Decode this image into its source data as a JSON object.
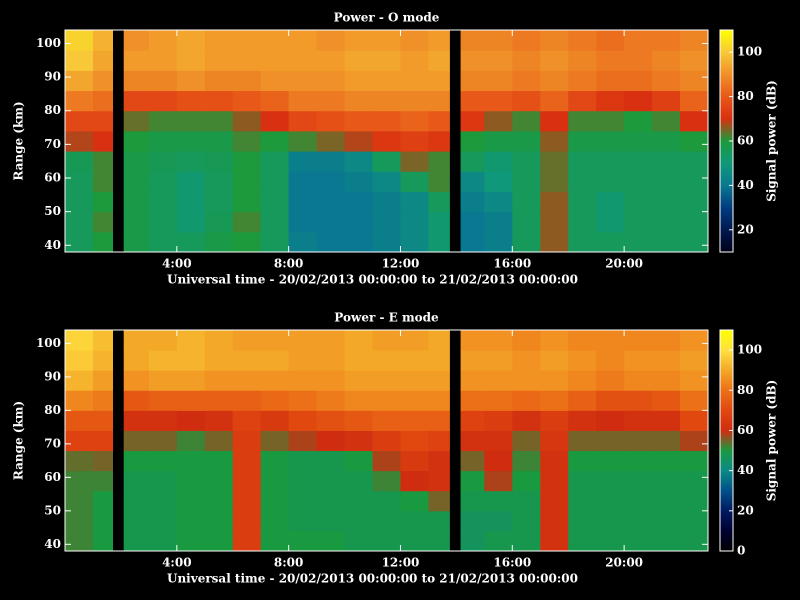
{
  "chart_data": [
    {
      "type": "heatmap",
      "title": "Power - O mode",
      "x_label": "Universal time - 20/02/2013 00:00:00 to 21/02/2013 00:00:00",
      "y_label": "Range (km)",
      "colorbar_label": "Signal power (dB)",
      "xbins": [
        0,
        1,
        1.7,
        2.1,
        3,
        4,
        5,
        6,
        7,
        8,
        9,
        10,
        11,
        12,
        13,
        13.75,
        14.15,
        15,
        16,
        17,
        18,
        19,
        20,
        21,
        22,
        23
      ],
      "ybins": [
        38,
        44,
        50,
        56,
        62,
        68,
        74,
        80,
        86,
        92,
        98,
        104
      ],
      "xlim": [
        0,
        23
      ],
      "ylim": [
        38,
        104
      ],
      "zlim": [
        10,
        110
      ],
      "xticks": [
        {
          "value": 4,
          "label": "4:00"
        },
        {
          "value": 8,
          "label": "8:00"
        },
        {
          "value": 12,
          "label": "12:00"
        },
        {
          "value": 16,
          "label": "16:00"
        },
        {
          "value": 20,
          "label": "20:00"
        }
      ],
      "yticks": [
        40,
        50,
        60,
        70,
        80,
        90,
        100
      ],
      "cticks": [
        20,
        40,
        60,
        80,
        100
      ],
      "colormap": [
        "#000018",
        "#001850",
        "#003c80",
        "#0a7890",
        "#10987a",
        "#1c9a3c",
        "#d83010",
        "#e85818",
        "#f09028",
        "#f8c838",
        "#ffff00"
      ],
      "z": [
        [
          55,
          60,
          null,
          58,
          55,
          55,
          58,
          60,
          55,
          42,
          40,
          40,
          42,
          45,
          52,
          null,
          40,
          42,
          55,
          66,
          55,
          55,
          55,
          55,
          55
        ],
        [
          55,
          62,
          null,
          58,
          55,
          52,
          56,
          62,
          55,
          40,
          40,
          40,
          42,
          45,
          52,
          null,
          40,
          42,
          55,
          66,
          55,
          52,
          55,
          55,
          55
        ],
        [
          55,
          60,
          null,
          58,
          55,
          52,
          55,
          60,
          55,
          40,
          40,
          40,
          42,
          45,
          55,
          null,
          42,
          45,
          55,
          66,
          55,
          52,
          55,
          55,
          55
        ],
        [
          55,
          62,
          null,
          58,
          55,
          52,
          55,
          60,
          55,
          40,
          40,
          42,
          45,
          55,
          62,
          null,
          45,
          50,
          55,
          64,
          55,
          55,
          55,
          55,
          55
        ],
        [
          56,
          62,
          null,
          58,
          56,
          55,
          56,
          60,
          55,
          42,
          42,
          45,
          55,
          65,
          62,
          null,
          55,
          52,
          55,
          64,
          55,
          55,
          55,
          55,
          55
        ],
        [
          68,
          70,
          null,
          60,
          58,
          58,
          58,
          62,
          60,
          62,
          65,
          68,
          72,
          74,
          72,
          null,
          60,
          58,
          58,
          66,
          58,
          58,
          58,
          58,
          60
        ],
        [
          76,
          76,
          null,
          64,
          62,
          62,
          62,
          66,
          70,
          76,
          78,
          80,
          80,
          82,
          80,
          null,
          72,
          66,
          62,
          70,
          62,
          62,
          60,
          62,
          70
        ],
        [
          86,
          84,
          null,
          76,
          76,
          78,
          78,
          80,
          82,
          86,
          86,
          88,
          88,
          88,
          88,
          null,
          80,
          80,
          78,
          82,
          76,
          72,
          70,
          74,
          82
        ],
        [
          94,
          90,
          null,
          88,
          88,
          90,
          88,
          88,
          90,
          90,
          90,
          92,
          92,
          92,
          92,
          null,
          88,
          88,
          86,
          88,
          86,
          84,
          84,
          86,
          88
        ],
        [
          100,
          94,
          null,
          92,
          92,
          94,
          92,
          92,
          92,
          92,
          92,
          94,
          94,
          92,
          94,
          null,
          90,
          90,
          88,
          90,
          88,
          86,
          86,
          88,
          90
        ],
        [
          102,
          96,
          null,
          90,
          92,
          94,
          92,
          92,
          92,
          92,
          90,
          92,
          92,
          90,
          92,
          null,
          88,
          88,
          86,
          88,
          86,
          84,
          86,
          86,
          88
        ]
      ]
    },
    {
      "type": "heatmap",
      "title": "Power - E mode",
      "x_label": "Universal time - 20/02/2013 00:00:00 to 21/02/2013 00:00:00",
      "y_label": "Range (km)",
      "colorbar_label": "Signal power (dB)",
      "xbins": [
        0,
        1,
        1.7,
        2.1,
        3,
        4,
        5,
        6,
        7,
        8,
        9,
        10,
        11,
        12,
        13,
        13.75,
        14.15,
        15,
        16,
        17,
        18,
        19,
        20,
        21,
        22,
        23
      ],
      "ybins": [
        38,
        44,
        50,
        56,
        62,
        68,
        74,
        80,
        86,
        92,
        98,
        104
      ],
      "xlim": [
        0,
        23
      ],
      "ylim": [
        38,
        104
      ],
      "zlim": [
        0,
        110
      ],
      "xticks": [
        {
          "value": 4,
          "label": "4:00"
        },
        {
          "value": 8,
          "label": "8:00"
        },
        {
          "value": 12,
          "label": "12:00"
        },
        {
          "value": 16,
          "label": "16:00"
        },
        {
          "value": 20,
          "label": "20:00"
        }
      ],
      "yticks": [
        40,
        50,
        60,
        70,
        80,
        90,
        100
      ],
      "cticks": [
        0,
        20,
        40,
        60,
        80,
        100
      ],
      "colormap": [
        "#000000",
        "#000030",
        "#001a60",
        "#00508a",
        "#0a8a86",
        "#1a9a40",
        "#d02c10",
        "#e04810",
        "#ec7018",
        "#f4a828",
        "#ffe040",
        "#ffff00"
      ],
      "z": [
        [
          52,
          50,
          null,
          48,
          48,
          50,
          50,
          66,
          50,
          50,
          50,
          48,
          48,
          48,
          48,
          null,
          46,
          48,
          48,
          62,
          48,
          48,
          48,
          48,
          48
        ],
        [
          52,
          50,
          null,
          48,
          48,
          50,
          50,
          66,
          50,
          48,
          48,
          48,
          48,
          48,
          48,
          null,
          46,
          46,
          48,
          62,
          48,
          48,
          48,
          48,
          48
        ],
        [
          52,
          50,
          null,
          48,
          48,
          50,
          50,
          66,
          50,
          48,
          48,
          48,
          48,
          50,
          55,
          null,
          48,
          48,
          48,
          62,
          48,
          48,
          48,
          48,
          48
        ],
        [
          52,
          52,
          null,
          48,
          48,
          50,
          50,
          66,
          50,
          48,
          48,
          48,
          52,
          60,
          62,
          null,
          50,
          58,
          50,
          62,
          48,
          48,
          48,
          48,
          48
        ],
        [
          54,
          55,
          null,
          50,
          50,
          50,
          50,
          66,
          50,
          48,
          48,
          50,
          58,
          65,
          62,
          null,
          55,
          60,
          52,
          62,
          50,
          50,
          50,
          50,
          50
        ],
        [
          68,
          68,
          null,
          55,
          55,
          52,
          55,
          66,
          55,
          58,
          60,
          62,
          66,
          70,
          68,
          null,
          62,
          62,
          55,
          64,
          55,
          55,
          55,
          55,
          58
        ],
        [
          74,
          74,
          null,
          62,
          62,
          60,
          62,
          68,
          65,
          70,
          72,
          74,
          76,
          76,
          76,
          null,
          68,
          66,
          62,
          66,
          62,
          60,
          62,
          62,
          70
        ],
        [
          84,
          82,
          null,
          74,
          76,
          76,
          76,
          76,
          78,
          80,
          82,
          84,
          84,
          84,
          84,
          null,
          80,
          80,
          78,
          80,
          76,
          72,
          72,
          74,
          80
        ],
        [
          92,
          88,
          null,
          86,
          88,
          88,
          86,
          86,
          86,
          86,
          86,
          88,
          88,
          88,
          88,
          null,
          86,
          86,
          86,
          86,
          84,
          82,
          84,
          84,
          86
        ],
        [
          96,
          92,
          null,
          90,
          92,
          92,
          90,
          90,
          90,
          88,
          88,
          90,
          90,
          90,
          90,
          null,
          88,
          88,
          86,
          88,
          86,
          84,
          86,
          86,
          88
        ],
        [
          98,
          94,
          null,
          90,
          90,
          92,
          90,
          88,
          88,
          88,
          88,
          90,
          88,
          88,
          90,
          null,
          86,
          86,
          84,
          86,
          84,
          84,
          84,
          84,
          86
        ]
      ]
    }
  ]
}
